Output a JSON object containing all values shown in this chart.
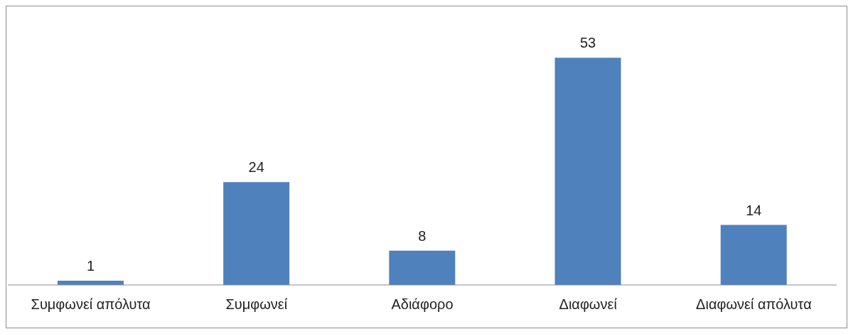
{
  "chart_data": {
    "type": "bar",
    "categories": [
      "Συμφωνεί απόλυτα",
      "Συμφωνεί",
      "Αδιάφορο",
      "Διαφωνεί",
      "Διαφωνεί απόλυτα"
    ],
    "values": [
      1,
      24,
      8,
      53,
      14
    ],
    "color": "#4f81bd",
    "data_labels": true
  }
}
